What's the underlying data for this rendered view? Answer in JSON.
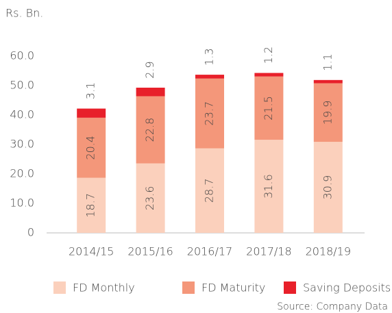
{
  "chart_data": {
    "type": "stacked_bar",
    "y_axis_label": "Rs. Bn.",
    "source": "Source: Company Data",
    "categories": [
      "2014/15",
      "2015/16",
      "2016/17",
      "2017/18",
      "2018/19"
    ],
    "series": [
      {
        "name": "FD Monthly",
        "color": "#fbd0bc",
        "values": [
          18.7,
          23.6,
          28.7,
          31.6,
          30.9
        ]
      },
      {
        "name": "FD Maturity",
        "color": "#f4977a",
        "values": [
          20.4,
          22.8,
          23.7,
          21.5,
          19.9
        ]
      },
      {
        "name": "Saving Deposits",
        "color": "#e8202a",
        "values": [
          3.1,
          2.9,
          1.3,
          1.2,
          1.1
        ]
      }
    ],
    "ylim": [
      0,
      60
    ],
    "yticks": [
      0,
      {
        "value": 10,
        "label": "10.0"
      },
      {
        "value": 20,
        "label": "20.0"
      },
      {
        "value": 30,
        "label": "30.0"
      },
      {
        "value": 40,
        "label": "40.0"
      },
      {
        "value": 50,
        "label": "50.0"
      },
      {
        "value": 60,
        "label": "60.0"
      }
    ],
    "grid": false,
    "legend": "bottom"
  }
}
